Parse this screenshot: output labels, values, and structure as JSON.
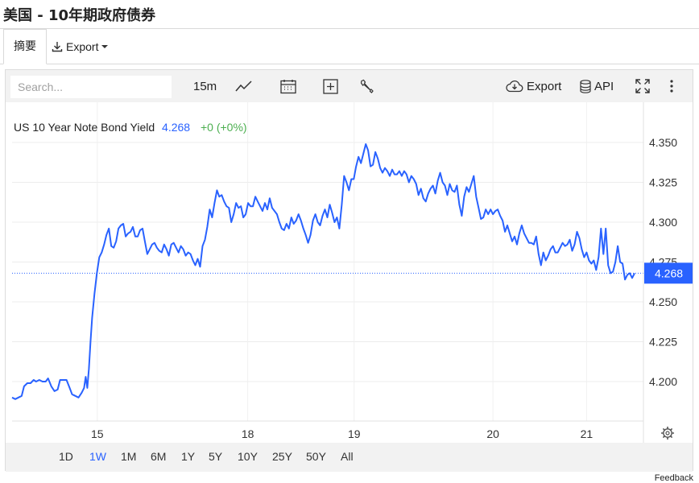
{
  "page": {
    "title": "美国 - 10年期政府债券"
  },
  "tabs": {
    "summary_label": "摘要",
    "export_label": "Export"
  },
  "toolbar": {
    "search_placeholder": "Search...",
    "interval_label": "15m",
    "export_label": "Export",
    "api_label": "API"
  },
  "legend": {
    "symbol_name": "US 10 Year Note Bond Yield",
    "last_value": "4.268",
    "change": "+0 (+0%)"
  },
  "price_tag": "4.268",
  "range_buttons": [
    "1D",
    "1W",
    "1M",
    "6M",
    "1Y",
    "5Y",
    "10Y",
    "25Y",
    "50Y",
    "All"
  ],
  "active_range": "1W",
  "feedback_label": "Feedback",
  "colors": {
    "line": "#2962ff",
    "positive": "#4caf50",
    "active": "#2962ff",
    "price_tag_bg": "#2962ff"
  },
  "chart_data": {
    "type": "line",
    "title": "",
    "xlabel": "",
    "ylabel": "",
    "ylim": [
      4.175,
      4.36
    ],
    "y_ticks": [
      "4.200",
      "4.225",
      "4.250",
      "4.275",
      "4.300",
      "4.325",
      "4.350"
    ],
    "x_ticks": [
      {
        "label": "15",
        "t": 10.65
      },
      {
        "label": "18",
        "t": 29.45
      },
      {
        "label": "19",
        "t": 42.75
      },
      {
        "label": "20",
        "t": 60.1
      },
      {
        "label": "21",
        "t": 71.8
      }
    ],
    "x_range": [
      0,
      78
    ],
    "current_value": 4.268,
    "series": [
      {
        "name": "US 10 Year Note Bond Yield",
        "points": [
          [
            0.0,
            4.19
          ],
          [
            0.4,
            4.189
          ],
          [
            0.8,
            4.19
          ],
          [
            1.2,
            4.191
          ],
          [
            1.5,
            4.197
          ],
          [
            1.9,
            4.199
          ],
          [
            2.3,
            4.199
          ],
          [
            2.7,
            4.201
          ],
          [
            3.0,
            4.2
          ],
          [
            3.4,
            4.201
          ],
          [
            3.8,
            4.2
          ],
          [
            4.2,
            4.2
          ],
          [
            4.5,
            4.202
          ],
          [
            4.9,
            4.197
          ],
          [
            5.3,
            4.194
          ],
          [
            5.7,
            4.195
          ],
          [
            6.0,
            4.201
          ],
          [
            6.4,
            4.201
          ],
          [
            6.8,
            4.201
          ],
          [
            7.2,
            4.196
          ],
          [
            7.5,
            4.192
          ],
          [
            7.9,
            4.191
          ],
          [
            8.3,
            4.19
          ],
          [
            8.7,
            4.193
          ],
          [
            9.0,
            4.196
          ],
          [
            9.2,
            4.203
          ],
          [
            9.4,
            4.196
          ],
          [
            9.6,
            4.208
          ],
          [
            9.8,
            4.225
          ],
          [
            10.0,
            4.24
          ],
          [
            10.3,
            4.255
          ],
          [
            10.6,
            4.268
          ],
          [
            10.9,
            4.278
          ],
          [
            11.2,
            4.281
          ],
          [
            11.5,
            4.286
          ],
          [
            11.8,
            4.292
          ],
          [
            12.1,
            4.296
          ],
          [
            12.4,
            4.285
          ],
          [
            12.7,
            4.284
          ],
          [
            13.0,
            4.288
          ],
          [
            13.3,
            4.296
          ],
          [
            13.6,
            4.298
          ],
          [
            13.9,
            4.299
          ],
          [
            14.2,
            4.291
          ],
          [
            14.5,
            4.293
          ],
          [
            14.8,
            4.294
          ],
          [
            15.1,
            4.297
          ],
          [
            15.4,
            4.291
          ],
          [
            15.7,
            4.291
          ],
          [
            16.0,
            4.295
          ],
          [
            16.3,
            4.296
          ],
          [
            16.6,
            4.288
          ],
          [
            16.9,
            4.28
          ],
          [
            17.2,
            4.283
          ],
          [
            17.5,
            4.286
          ],
          [
            17.8,
            4.287
          ],
          [
            18.1,
            4.284
          ],
          [
            18.4,
            4.282
          ],
          [
            18.7,
            4.281
          ],
          [
            19.0,
            4.286
          ],
          [
            19.3,
            4.283
          ],
          [
            19.6,
            4.279
          ],
          [
            19.9,
            4.286
          ],
          [
            20.2,
            4.287
          ],
          [
            20.5,
            4.284
          ],
          [
            20.8,
            4.281
          ],
          [
            21.1,
            4.285
          ],
          [
            21.4,
            4.283
          ],
          [
            21.7,
            4.279
          ],
          [
            22.0,
            4.281
          ],
          [
            22.3,
            4.28
          ],
          [
            22.6,
            4.276
          ],
          [
            22.9,
            4.273
          ],
          [
            23.2,
            4.277
          ],
          [
            23.5,
            4.272
          ],
          [
            23.8,
            4.285
          ],
          [
            24.1,
            4.289
          ],
          [
            24.4,
            4.297
          ],
          [
            24.7,
            4.308
          ],
          [
            25.0,
            4.303
          ],
          [
            25.3,
            4.312
          ],
          [
            25.6,
            4.32
          ],
          [
            25.9,
            4.316
          ],
          [
            26.2,
            4.317
          ],
          [
            26.5,
            4.313
          ],
          [
            26.8,
            4.31
          ],
          [
            27.1,
            4.309
          ],
          [
            27.4,
            4.3
          ],
          [
            27.7,
            4.305
          ],
          [
            28.0,
            4.312
          ],
          [
            28.3,
            4.309
          ],
          [
            28.6,
            4.31
          ],
          [
            28.9,
            4.303
          ],
          [
            29.2,
            4.305
          ],
          [
            29.5,
            4.312
          ],
          [
            29.8,
            4.31
          ],
          [
            30.1,
            4.31
          ],
          [
            30.4,
            4.316
          ],
          [
            30.7,
            4.313
          ],
          [
            31.0,
            4.31
          ],
          [
            31.3,
            4.307
          ],
          [
            31.6,
            4.312
          ],
          [
            31.9,
            4.308
          ],
          [
            32.2,
            4.315
          ],
          [
            32.5,
            4.309
          ],
          [
            32.8,
            4.307
          ],
          [
            33.1,
            4.305
          ],
          [
            33.4,
            4.3
          ],
          [
            33.7,
            4.296
          ],
          [
            34.0,
            4.295
          ],
          [
            34.3,
            4.299
          ],
          [
            34.6,
            4.296
          ],
          [
            34.9,
            4.303
          ],
          [
            35.2,
            4.299
          ],
          [
            35.5,
            4.301
          ],
          [
            35.8,
            4.305
          ],
          [
            36.1,
            4.301
          ],
          [
            36.4,
            4.296
          ],
          [
            36.7,
            4.292
          ],
          [
            37.0,
            4.287
          ],
          [
            37.3,
            4.292
          ],
          [
            37.6,
            4.301
          ],
          [
            37.9,
            4.305
          ],
          [
            38.2,
            4.3
          ],
          [
            38.5,
            4.298
          ],
          [
            38.8,
            4.304
          ],
          [
            39.1,
            4.308
          ],
          [
            39.4,
            4.303
          ],
          [
            39.7,
            4.311
          ],
          [
            40.0,
            4.306
          ],
          [
            40.3,
            4.3
          ],
          [
            40.6,
            4.303
          ],
          [
            40.9,
            4.296
          ],
          [
            41.2,
            4.311
          ],
          [
            41.5,
            4.329
          ],
          [
            41.8,
            4.325
          ],
          [
            42.1,
            4.32
          ],
          [
            42.4,
            4.327
          ],
          [
            42.7,
            4.327
          ],
          [
            43.0,
            4.335
          ],
          [
            43.3,
            4.341
          ],
          [
            43.6,
            4.337
          ],
          [
            43.9,
            4.343
          ],
          [
            44.2,
            4.349
          ],
          [
            44.5,
            4.345
          ],
          [
            44.8,
            4.335
          ],
          [
            45.1,
            4.336
          ],
          [
            45.4,
            4.344
          ],
          [
            45.7,
            4.34
          ],
          [
            46.0,
            4.334
          ],
          [
            46.3,
            4.331
          ],
          [
            46.6,
            4.334
          ],
          [
            46.9,
            4.332
          ],
          [
            47.2,
            4.329
          ],
          [
            47.5,
            4.333
          ],
          [
            47.8,
            4.33
          ],
          [
            48.1,
            4.33
          ],
          [
            48.4,
            4.332
          ],
          [
            48.7,
            4.329
          ],
          [
            49.0,
            4.332
          ],
          [
            49.3,
            4.33
          ],
          [
            49.6,
            4.325
          ],
          [
            49.9,
            4.329
          ],
          [
            50.2,
            4.327
          ],
          [
            50.5,
            4.324
          ],
          [
            50.8,
            4.317
          ],
          [
            51.1,
            4.321
          ],
          [
            51.4,
            4.315
          ],
          [
            51.7,
            4.313
          ],
          [
            52.0,
            4.318
          ],
          [
            52.3,
            4.321
          ],
          [
            52.6,
            4.323
          ],
          [
            52.9,
            4.318
          ],
          [
            53.2,
            4.326
          ],
          [
            53.5,
            4.331
          ],
          [
            53.8,
            4.325
          ],
          [
            54.1,
            4.323
          ],
          [
            54.4,
            4.317
          ],
          [
            54.7,
            4.324
          ],
          [
            55.0,
            4.32
          ],
          [
            55.3,
            4.319
          ],
          [
            55.6,
            4.323
          ],
          [
            55.9,
            4.311
          ],
          [
            56.2,
            4.304
          ],
          [
            56.5,
            4.316
          ],
          [
            56.8,
            4.322
          ],
          [
            57.1,
            4.319
          ],
          [
            57.4,
            4.324
          ],
          [
            57.7,
            4.329
          ],
          [
            58.0,
            4.316
          ],
          [
            58.3,
            4.309
          ],
          [
            58.6,
            4.302
          ],
          [
            58.9,
            4.303
          ],
          [
            59.2,
            4.308
          ],
          [
            59.5,
            4.305
          ],
          [
            59.8,
            4.308
          ],
          [
            60.1,
            4.305
          ],
          [
            60.4,
            4.307
          ],
          [
            60.7,
            4.308
          ],
          [
            61.0,
            4.304
          ],
          [
            61.3,
            4.301
          ],
          [
            61.6,
            4.294
          ],
          [
            61.9,
            4.298
          ],
          [
            62.2,
            4.293
          ],
          [
            62.5,
            4.288
          ],
          [
            62.8,
            4.291
          ],
          [
            63.1,
            4.286
          ],
          [
            63.4,
            4.293
          ],
          [
            63.7,
            4.298
          ],
          [
            64.0,
            4.293
          ],
          [
            64.3,
            4.29
          ],
          [
            64.6,
            4.287
          ],
          [
            64.9,
            4.287
          ],
          [
            65.2,
            4.286
          ],
          [
            65.5,
            4.291
          ],
          [
            65.8,
            4.28
          ],
          [
            66.1,
            4.273
          ],
          [
            66.4,
            4.281
          ],
          [
            66.7,
            4.276
          ],
          [
            67.0,
            4.279
          ],
          [
            67.3,
            4.283
          ],
          [
            67.6,
            4.285
          ],
          [
            67.9,
            4.281
          ],
          [
            68.2,
            4.281
          ],
          [
            68.5,
            4.284
          ],
          [
            68.8,
            4.287
          ],
          [
            69.1,
            4.285
          ],
          [
            69.4,
            4.286
          ],
          [
            69.7,
            4.289
          ],
          [
            70.0,
            4.282
          ],
          [
            70.3,
            4.286
          ],
          [
            70.6,
            4.294
          ],
          [
            70.9,
            4.29
          ],
          [
            71.2,
            4.283
          ],
          [
            71.5,
            4.278
          ],
          [
            71.8,
            4.281
          ],
          [
            72.1,
            4.276
          ],
          [
            72.4,
            4.274
          ],
          [
            72.7,
            4.276
          ],
          [
            73.0,
            4.27
          ],
          [
            73.3,
            4.278
          ],
          [
            73.6,
            4.296
          ],
          [
            73.9,
            4.28
          ],
          [
            74.2,
            4.296
          ],
          [
            74.5,
            4.273
          ],
          [
            74.8,
            4.268
          ],
          [
            75.1,
            4.269
          ],
          [
            75.4,
            4.275
          ],
          [
            75.7,
            4.285
          ],
          [
            76.0,
            4.275
          ],
          [
            76.3,
            4.274
          ],
          [
            76.6,
            4.264
          ],
          [
            76.9,
            4.267
          ],
          [
            77.2,
            4.268
          ],
          [
            77.5,
            4.265
          ],
          [
            77.8,
            4.268
          ]
        ]
      }
    ]
  }
}
